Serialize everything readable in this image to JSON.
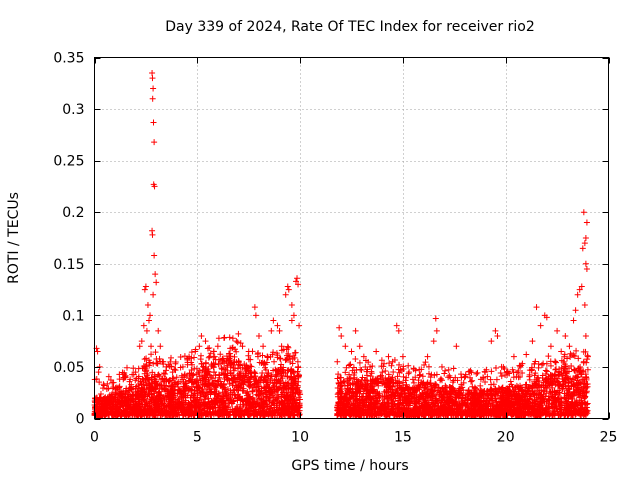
{
  "chart_data": {
    "type": "scatter",
    "title": "Day 339 of 2024, Rate Of TEC Index for receiver rio2",
    "xlabel": "GPS time / hours",
    "ylabel": "ROTI / TECUs",
    "xlim": [
      0,
      25
    ],
    "ylim": [
      0,
      0.35
    ],
    "xticks": [
      0,
      5,
      10,
      15,
      20,
      25
    ],
    "xtick_labels": [
      "0",
      "5",
      "10",
      "15",
      "20",
      "25"
    ],
    "yticks": [
      0,
      0.05,
      0.1,
      0.15,
      0.2,
      0.25,
      0.3,
      0.35
    ],
    "ytick_labels": [
      "0",
      "0.05",
      "0.1",
      "0.15",
      "0.2",
      "0.25",
      "0.3",
      "0.35"
    ],
    "grid": true,
    "marker": "+",
    "color": "#ff0000",
    "series": [
      {
        "points": [
          [
            0.1,
            0.068
          ],
          [
            0.15,
            0.065
          ],
          [
            0.2,
            0.045
          ],
          [
            0.25,
            0.05
          ],
          [
            0.1,
            0.012
          ],
          [
            0.5,
            0.02
          ],
          [
            0.8,
            0.015
          ],
          [
            1.0,
            0.025
          ],
          [
            1.2,
            0.03
          ],
          [
            1.4,
            0.038
          ],
          [
            1.6,
            0.02
          ],
          [
            1.8,
            0.028
          ],
          [
            2.0,
            0.045
          ],
          [
            2.2,
            0.07
          ],
          [
            2.3,
            0.075
          ],
          [
            2.4,
            0.09
          ],
          [
            2.45,
            0.125
          ],
          [
            2.5,
            0.128
          ],
          [
            2.55,
            0.085
          ],
          [
            2.6,
            0.11
          ],
          [
            2.65,
            0.095
          ],
          [
            2.7,
            0.1
          ],
          [
            2.75,
            0.07
          ],
          [
            2.8,
            0.335
          ],
          [
            2.82,
            0.33
          ],
          [
            2.85,
            0.32
          ],
          [
            2.83,
            0.31
          ],
          [
            2.87,
            0.287
          ],
          [
            2.9,
            0.268
          ],
          [
            2.88,
            0.227
          ],
          [
            2.92,
            0.225
          ],
          [
            2.8,
            0.182
          ],
          [
            2.82,
            0.178
          ],
          [
            2.9,
            0.158
          ],
          [
            2.95,
            0.14
          ],
          [
            3.0,
            0.132
          ],
          [
            2.85,
            0.12
          ],
          [
            3.1,
            0.085
          ],
          [
            3.2,
            0.07
          ],
          [
            3.3,
            0.055
          ],
          [
            3.5,
            0.05
          ],
          [
            3.8,
            0.045
          ],
          [
            4.0,
            0.04
          ],
          [
            4.3,
            0.05
          ],
          [
            4.6,
            0.06
          ],
          [
            4.9,
            0.065
          ],
          [
            5.1,
            0.07
          ],
          [
            5.2,
            0.08
          ],
          [
            5.4,
            0.075
          ],
          [
            5.6,
            0.06
          ],
          [
            5.8,
            0.065
          ],
          [
            6.0,
            0.07
          ],
          [
            6.3,
            0.078
          ],
          [
            6.6,
            0.068
          ],
          [
            6.9,
            0.075
          ],
          [
            7.0,
            0.082
          ],
          [
            7.2,
            0.07
          ],
          [
            7.5,
            0.065
          ],
          [
            7.8,
            0.108
          ],
          [
            7.85,
            0.1
          ],
          [
            8.0,
            0.08
          ],
          [
            8.2,
            0.07
          ],
          [
            8.4,
            0.06
          ],
          [
            8.6,
            0.085
          ],
          [
            8.7,
            0.095
          ],
          [
            8.9,
            0.09
          ],
          [
            9.0,
            0.085
          ],
          [
            9.1,
            0.07
          ],
          [
            9.3,
            0.12
          ],
          [
            9.4,
            0.128
          ],
          [
            9.45,
            0.125
          ],
          [
            9.6,
            0.11
          ],
          [
            9.7,
            0.1
          ],
          [
            9.8,
            0.133
          ],
          [
            9.85,
            0.136
          ],
          [
            9.9,
            0.13
          ],
          [
            9.95,
            0.09
          ],
          [
            9.6,
            0.095
          ],
          [
            9.5,
            0.06
          ],
          [
            9.9,
            0.05
          ],
          [
            11.9,
            0.088
          ],
          [
            12.0,
            0.08
          ],
          [
            12.2,
            0.07
          ],
          [
            12.5,
            0.065
          ],
          [
            12.7,
            0.085
          ],
          [
            12.9,
            0.07
          ],
          [
            13.1,
            0.06
          ],
          [
            13.4,
            0.05
          ],
          [
            13.7,
            0.065
          ],
          [
            14.0,
            0.045
          ],
          [
            14.3,
            0.06
          ],
          [
            14.5,
            0.055
          ],
          [
            14.7,
            0.09
          ],
          [
            14.8,
            0.085
          ],
          [
            15.0,
            0.06
          ],
          [
            15.3,
            0.045
          ],
          [
            15.6,
            0.04
          ],
          [
            15.9,
            0.035
          ],
          [
            16.2,
            0.06
          ],
          [
            16.5,
            0.075
          ],
          [
            16.6,
            0.097
          ],
          [
            16.65,
            0.085
          ],
          [
            16.9,
            0.05
          ],
          [
            17.2,
            0.04
          ],
          [
            17.6,
            0.07
          ],
          [
            18.0,
            0.04
          ],
          [
            18.5,
            0.03
          ],
          [
            19.0,
            0.045
          ],
          [
            19.3,
            0.075
          ],
          [
            19.5,
            0.085
          ],
          [
            19.6,
            0.08
          ],
          [
            19.8,
            0.05
          ],
          [
            20.1,
            0.045
          ],
          [
            20.4,
            0.06
          ],
          [
            20.7,
            0.05
          ],
          [
            21.0,
            0.062
          ],
          [
            21.3,
            0.075
          ],
          [
            21.5,
            0.108
          ],
          [
            21.7,
            0.09
          ],
          [
            21.9,
            0.1
          ],
          [
            22.0,
            0.098
          ],
          [
            22.2,
            0.07
          ],
          [
            22.5,
            0.085
          ],
          [
            22.7,
            0.065
          ],
          [
            22.9,
            0.08
          ],
          [
            23.1,
            0.07
          ],
          [
            23.3,
            0.095
          ],
          [
            23.4,
            0.105
          ],
          [
            23.5,
            0.12
          ],
          [
            23.6,
            0.125
          ],
          [
            23.7,
            0.128
          ],
          [
            23.75,
            0.165
          ],
          [
            23.8,
            0.2
          ],
          [
            23.85,
            0.17
          ],
          [
            23.9,
            0.175
          ],
          [
            23.95,
            0.19
          ],
          [
            23.9,
            0.15
          ],
          [
            23.95,
            0.145
          ],
          [
            23.85,
            0.11
          ],
          [
            23.9,
            0.08
          ],
          [
            24.0,
            0.06
          ],
          [
            23.8,
            0.055
          ],
          [
            23.6,
            0.045
          ]
        ],
        "dense_bands": [
          {
            "x_start": 0.0,
            "x_end": 10.0,
            "y_floor": 0.003,
            "y_envelope": [
              [
                0.0,
                0.02
              ],
              [
                0.5,
                0.022
              ],
              [
                1.0,
                0.025
              ],
              [
                1.5,
                0.03
              ],
              [
                2.0,
                0.032
              ],
              [
                2.5,
                0.04
              ],
              [
                3.0,
                0.045
              ],
              [
                3.5,
                0.038
              ],
              [
                4.0,
                0.04
              ],
              [
                4.5,
                0.045
              ],
              [
                5.0,
                0.05
              ],
              [
                5.5,
                0.055
              ],
              [
                6.0,
                0.058
              ],
              [
                6.5,
                0.06
              ],
              [
                7.0,
                0.058
              ],
              [
                7.5,
                0.05
              ],
              [
                8.0,
                0.045
              ],
              [
                8.5,
                0.045
              ],
              [
                9.0,
                0.05
              ],
              [
                9.5,
                0.05
              ],
              [
                10.0,
                0.04
              ]
            ]
          },
          {
            "x_start": 11.8,
            "x_end": 24.0,
            "y_floor": 0.003,
            "y_envelope": [
              [
                11.8,
                0.035
              ],
              [
                12.5,
                0.04
              ],
              [
                13.0,
                0.04
              ],
              [
                13.5,
                0.038
              ],
              [
                14.0,
                0.04
              ],
              [
                14.5,
                0.038
              ],
              [
                15.0,
                0.035
              ],
              [
                15.5,
                0.03
              ],
              [
                16.0,
                0.035
              ],
              [
                16.5,
                0.035
              ],
              [
                17.0,
                0.032
              ],
              [
                17.5,
                0.03
              ],
              [
                18.0,
                0.028
              ],
              [
                18.5,
                0.025
              ],
              [
                19.0,
                0.028
              ],
              [
                19.5,
                0.03
              ],
              [
                20.0,
                0.03
              ],
              [
                20.5,
                0.032
              ],
              [
                21.0,
                0.035
              ],
              [
                21.5,
                0.038
              ],
              [
                22.0,
                0.04
              ],
              [
                22.5,
                0.045
              ],
              [
                23.0,
                0.045
              ],
              [
                23.5,
                0.05
              ],
              [
                24.0,
                0.045
              ]
            ]
          }
        ]
      }
    ]
  }
}
